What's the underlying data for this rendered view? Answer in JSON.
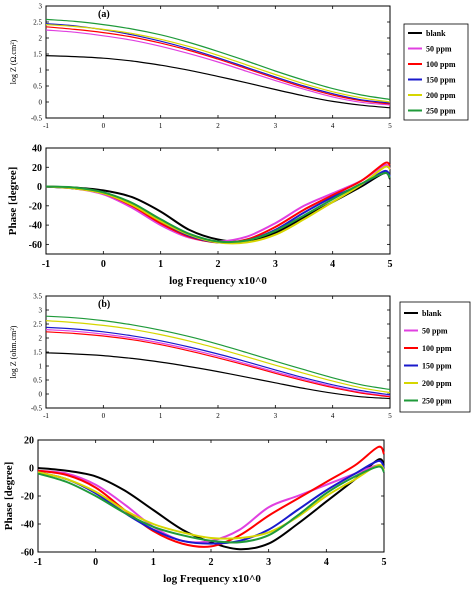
{
  "colors": {
    "blank": "#000000",
    "50 ppm": "#e040e0",
    "100 ppm": "#ff0000",
    "150 ppm": "#1a1acc",
    "200 ppm": "#d6d600",
    "250 ppm": "#1f9a3a"
  },
  "chart_data": [
    {
      "id": "a-modulus",
      "type": "line",
      "title": "(a)",
      "xlabel": "",
      "ylabel": "log Z (Ω.cm²)",
      "xlim": [
        -1,
        5
      ],
      "ylim": [
        -0.5,
        3
      ],
      "xticks": [
        -1,
        0,
        1,
        2,
        3,
        4,
        5
      ],
      "yticks": [
        -0.5,
        0,
        0.5,
        1,
        1.5,
        2,
        2.5,
        3
      ],
      "legend_position": "right",
      "x": [
        -1,
        -0.5,
        0,
        0.5,
        1,
        1.5,
        2,
        2.5,
        3,
        3.5,
        4,
        4.5,
        5
      ],
      "series": [
        {
          "name": "blank",
          "values": [
            1.45,
            1.42,
            1.37,
            1.28,
            1.15,
            0.99,
            0.8,
            0.6,
            0.39,
            0.19,
            0.02,
            -0.1,
            -0.18
          ]
        },
        {
          "name": "50 ppm",
          "values": [
            2.25,
            2.18,
            2.07,
            1.93,
            1.74,
            1.51,
            1.25,
            0.96,
            0.67,
            0.4,
            0.16,
            -0.01,
            -0.09
          ]
        },
        {
          "name": "100 ppm",
          "values": [
            2.35,
            2.27,
            2.17,
            2.03,
            1.84,
            1.61,
            1.34,
            1.04,
            0.74,
            0.46,
            0.22,
            0.04,
            -0.06
          ]
        },
        {
          "name": "150 ppm",
          "values": [
            2.45,
            2.38,
            2.26,
            2.1,
            1.9,
            1.66,
            1.38,
            1.08,
            0.78,
            0.5,
            0.26,
            0.07,
            -0.03
          ]
        },
        {
          "name": "200 ppm",
          "values": [
            2.42,
            2.36,
            2.27,
            2.14,
            1.96,
            1.73,
            1.46,
            1.16,
            0.86,
            0.57,
            0.32,
            0.13,
            0.0
          ]
        },
        {
          "name": "250 ppm",
          "values": [
            2.58,
            2.52,
            2.42,
            2.28,
            2.1,
            1.86,
            1.58,
            1.28,
            0.97,
            0.68,
            0.42,
            0.22,
            0.08
          ]
        }
      ]
    },
    {
      "id": "a-phase",
      "type": "line",
      "xlabel": "log Frequency x10^0",
      "ylabel": "Phase [degree]",
      "xlim": [
        -1,
        5
      ],
      "ylim": [
        -70,
        40
      ],
      "xticks": [
        -1,
        0,
        1,
        2,
        3,
        4,
        5
      ],
      "yticks": [
        -60,
        -40,
        -20,
        0,
        20,
        40
      ],
      "x": [
        -1,
        -0.5,
        0,
        0.5,
        1,
        1.5,
        2,
        2.5,
        3,
        3.5,
        4,
        4.5,
        4.9,
        5
      ],
      "series": [
        {
          "name": "blank",
          "values": [
            0,
            -1,
            -4,
            -11,
            -26,
            -45,
            -55,
            -57,
            -48,
            -32,
            -16,
            0,
            14,
            8
          ]
        },
        {
          "name": "50 ppm",
          "values": [
            0,
            -2,
            -8,
            -22,
            -40,
            -53,
            -57,
            -52,
            -38,
            -20,
            -7,
            6,
            22,
            18
          ]
        },
        {
          "name": "100 ppm",
          "values": [
            0,
            -2,
            -7,
            -20,
            -38,
            -52,
            -58,
            -55,
            -42,
            -24,
            -9,
            6,
            24,
            22
          ]
        },
        {
          "name": "150 ppm",
          "values": [
            0,
            -2,
            -6,
            -18,
            -36,
            -51,
            -58,
            -56,
            -45,
            -27,
            -11,
            2,
            16,
            10
          ]
        },
        {
          "name": "200 ppm",
          "values": [
            0,
            -2,
            -7,
            -19,
            -36,
            -50,
            -58,
            -58,
            -50,
            -34,
            -16,
            2,
            20,
            18
          ]
        },
        {
          "name": "250 ppm",
          "values": [
            0,
            -1,
            -6,
            -17,
            -34,
            -49,
            -57,
            -56,
            -46,
            -30,
            -13,
            3,
            14,
            9
          ]
        }
      ]
    },
    {
      "id": "b-modulus",
      "type": "line",
      "title": "(b)",
      "xlabel": "",
      "ylabel": "log Z (ohm.cm²)",
      "xlim": [
        -1,
        5
      ],
      "ylim": [
        -0.5,
        3.5
      ],
      "xticks": [
        -1,
        0,
        1,
        2,
        3,
        4,
        5
      ],
      "yticks": [
        -0.5,
        0,
        0.5,
        1,
        1.5,
        2,
        2.5,
        3,
        3.5
      ],
      "legend_position": "right",
      "x": [
        -1,
        -0.5,
        0,
        0.5,
        1,
        1.5,
        2,
        2.5,
        3,
        3.5,
        4,
        4.5,
        5
      ],
      "series": [
        {
          "name": "blank",
          "values": [
            1.47,
            1.43,
            1.37,
            1.27,
            1.14,
            0.98,
            0.8,
            0.6,
            0.4,
            0.2,
            0.03,
            -0.1,
            -0.16
          ]
        },
        {
          "name": "50 ppm",
          "values": [
            2.3,
            2.24,
            2.14,
            2.0,
            1.82,
            1.6,
            1.35,
            1.07,
            0.79,
            0.52,
            0.27,
            0.06,
            -0.08
          ]
        },
        {
          "name": "100 ppm",
          "values": [
            2.22,
            2.16,
            2.07,
            1.94,
            1.76,
            1.54,
            1.29,
            1.02,
            0.74,
            0.47,
            0.23,
            0.03,
            -0.1
          ]
        },
        {
          "name": "150 ppm",
          "values": [
            2.38,
            2.32,
            2.22,
            2.08,
            1.9,
            1.68,
            1.43,
            1.15,
            0.86,
            0.58,
            0.33,
            0.12,
            -0.03
          ]
        },
        {
          "name": "200 ppm",
          "values": [
            2.62,
            2.55,
            2.45,
            2.31,
            2.12,
            1.89,
            1.62,
            1.33,
            1.03,
            0.74,
            0.46,
            0.22,
            0.05
          ]
        },
        {
          "name": "250 ppm",
          "values": [
            2.78,
            2.72,
            2.62,
            2.47,
            2.28,
            2.05,
            1.78,
            1.48,
            1.17,
            0.87,
            0.58,
            0.33,
            0.16
          ]
        }
      ]
    },
    {
      "id": "b-phase",
      "type": "line",
      "xlabel": "log Frequency x10^0",
      "ylabel": "Phase [degree]",
      "xlim": [
        -1,
        5
      ],
      "ylim": [
        -60,
        20
      ],
      "xticks": [
        -1,
        0,
        1,
        2,
        3,
        4,
        5
      ],
      "yticks": [
        -60,
        -40,
        -20,
        0,
        20
      ],
      "x": [
        -1,
        -0.5,
        0,
        0.5,
        1,
        1.5,
        2,
        2.5,
        3,
        3.5,
        4,
        4.5,
        4.9,
        5
      ],
      "series": [
        {
          "name": "blank",
          "values": [
            0,
            -2,
            -6,
            -16,
            -30,
            -44,
            -53,
            -58,
            -54,
            -40,
            -24,
            -8,
            6,
            2
          ]
        },
        {
          "name": "50 ppm",
          "values": [
            -2,
            -4,
            -12,
            -26,
            -42,
            -52,
            -52,
            -44,
            -28,
            -20,
            -12,
            -4,
            2,
            -2
          ]
        },
        {
          "name": "100 ppm",
          "values": [
            -2,
            -5,
            -14,
            -30,
            -45,
            -54,
            -56,
            -48,
            -34,
            -22,
            -10,
            2,
            15,
            10
          ]
        },
        {
          "name": "150 ppm",
          "values": [
            -3,
            -8,
            -18,
            -32,
            -44,
            -52,
            -54,
            -52,
            -44,
            -30,
            -16,
            -4,
            5,
            0
          ]
        },
        {
          "name": "200 ppm",
          "values": [
            -3,
            -8,
            -17,
            -30,
            -40,
            -46,
            -50,
            -50,
            -46,
            -35,
            -20,
            -8,
            2,
            -2
          ]
        },
        {
          "name": "250 ppm",
          "values": [
            -4,
            -10,
            -20,
            -32,
            -42,
            -48,
            -52,
            -53,
            -48,
            -34,
            -18,
            -6,
            1,
            -3
          ]
        }
      ]
    }
  ]
}
